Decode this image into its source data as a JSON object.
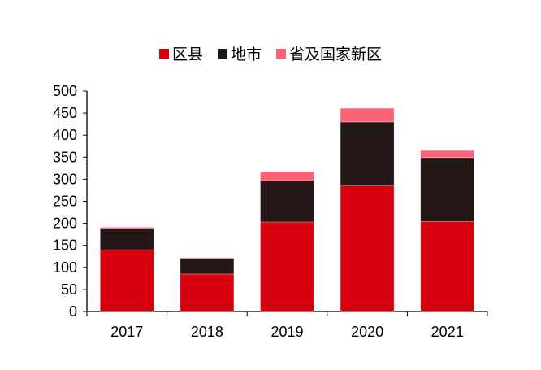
{
  "chart_data": {
    "type": "bar",
    "stacked": true,
    "title": "",
    "xlabel": "",
    "ylabel": "",
    "categories": [
      "2017",
      "2018",
      "2019",
      "2020",
      "2021"
    ],
    "series": [
      {
        "name": "区县",
        "color": "#d7000f",
        "values": [
          140,
          85,
          203,
          286,
          204
        ]
      },
      {
        "name": "地市",
        "color": "#231815",
        "values": [
          48,
          35,
          94,
          144,
          145
        ]
      },
      {
        "name": "省及国家新区",
        "color": "#ff6275",
        "values": [
          3,
          2,
          20,
          31,
          16
        ]
      }
    ],
    "ylim": [
      0,
      500
    ],
    "yticks": [
      "0",
      "50",
      "100",
      "150",
      "200",
      "250",
      "300",
      "350",
      "400",
      "450",
      "500"
    ],
    "grid": false,
    "legend_position": "top-center"
  }
}
